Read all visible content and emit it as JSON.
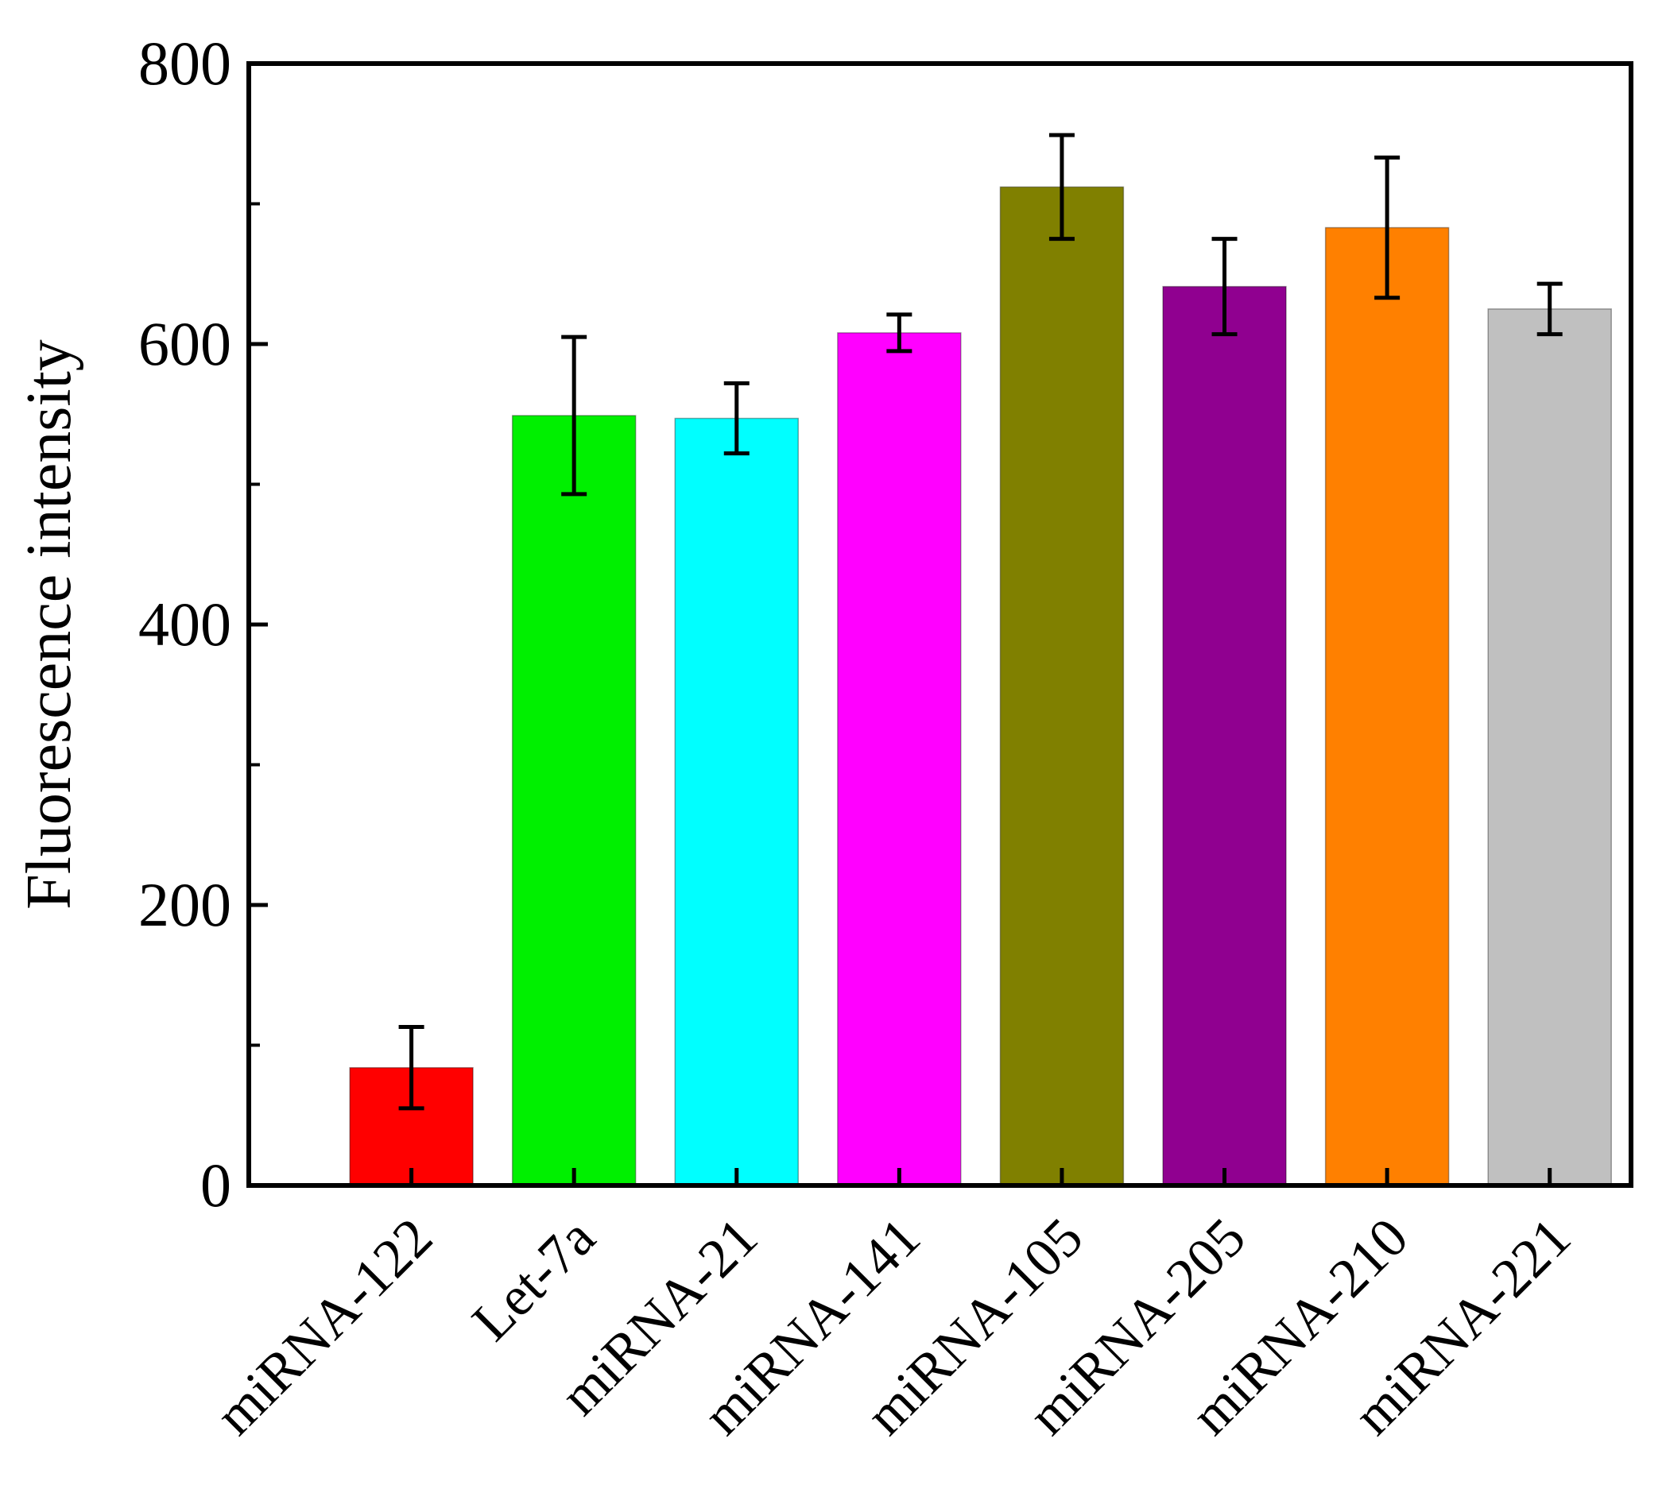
{
  "chart_data": {
    "type": "bar",
    "title": "",
    "xlabel": "",
    "ylabel": "Fluorescence intensity",
    "ylim": [
      0,
      800
    ],
    "yticks": [
      0,
      200,
      400,
      600,
      800
    ],
    "grid": false,
    "legend": "none",
    "categories": [
      "miRNA-122",
      "Let-7a",
      "miRNA-21",
      "miRNA-141",
      "miRNA-105",
      "miRNA-205",
      "miRNA-210",
      "miRNA-221"
    ],
    "values": [
      84,
      549,
      547,
      608,
      712,
      641,
      683,
      625
    ],
    "errors": [
      29,
      56,
      25,
      13,
      37,
      34,
      50,
      18
    ],
    "colors": [
      "#ff0000",
      "#00f000",
      "#00ffff",
      "#ff00ff",
      "#808000",
      "#900090",
      "#ff8000",
      "#c0c0c0"
    ]
  }
}
